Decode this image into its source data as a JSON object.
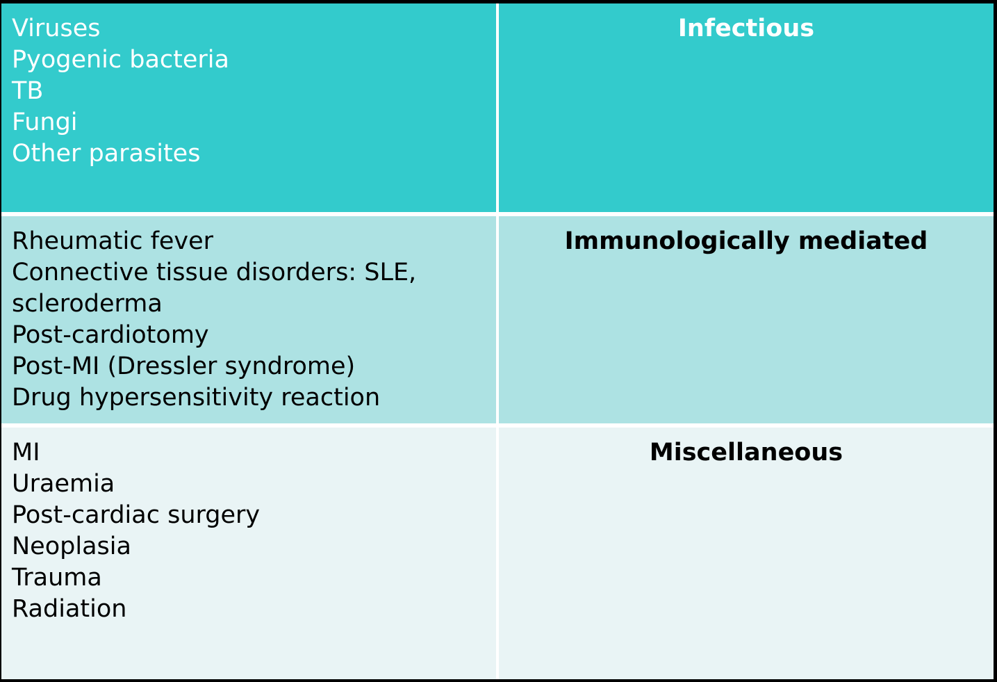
{
  "rows": [
    {
      "category": "Infectious",
      "causes": [
        "Viruses",
        "Pyogenic bacteria",
        "TB",
        "Fungi",
        "Other parasites"
      ],
      "colors": {
        "background": "#33cbcc",
        "text": "#ffffff"
      }
    },
    {
      "category": "Immunologically mediated",
      "causes": [
        "Rheumatic fever",
        "Connective tissue disorders: SLE,",
        "scleroderma",
        "Post-cardiotomy",
        "Post-MI (Dressler syndrome)",
        "Drug hypersensitivity reaction"
      ],
      "colors": {
        "background": "#ade2e3",
        "text": "#000000"
      }
    },
    {
      "category": "Miscellaneous",
      "causes": [
        "MI",
        "Uraemia",
        "Post-cardiac surgery",
        "Neoplasia",
        "Trauma",
        "Radiation"
      ],
      "colors": {
        "background": "#e9f4f5",
        "text": "#000000"
      }
    }
  ]
}
